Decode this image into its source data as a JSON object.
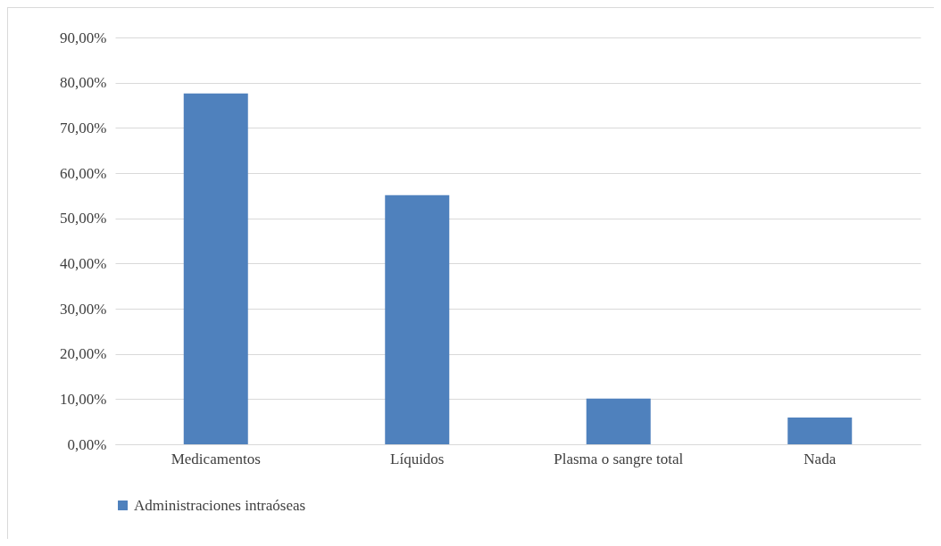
{
  "chart_data": {
    "type": "bar",
    "categories": [
      "Medicamentos",
      "Líquidos",
      "Plasma o sangre total",
      "Nada"
    ],
    "series": [
      {
        "name": "Administraciones intraóseas",
        "color": "#4f81bd",
        "values": [
          77.6,
          55.1,
          10.1,
          5.9
        ]
      }
    ],
    "ylim": [
      0,
      90
    ],
    "yticks": [
      {
        "value": 0,
        "label": "0,00%"
      },
      {
        "value": 10,
        "label": "10,00%"
      },
      {
        "value": 20,
        "label": "20,00%"
      },
      {
        "value": 30,
        "label": "30,00%"
      },
      {
        "value": 40,
        "label": "40,00%"
      },
      {
        "value": 50,
        "label": "50,00%"
      },
      {
        "value": 60,
        "label": "60,00%"
      },
      {
        "value": 70,
        "label": "70,00%"
      },
      {
        "value": 80,
        "label": "80,00%"
      },
      {
        "value": 90,
        "label": "90,00%"
      }
    ],
    "grid": "y",
    "legend": "bottom"
  }
}
